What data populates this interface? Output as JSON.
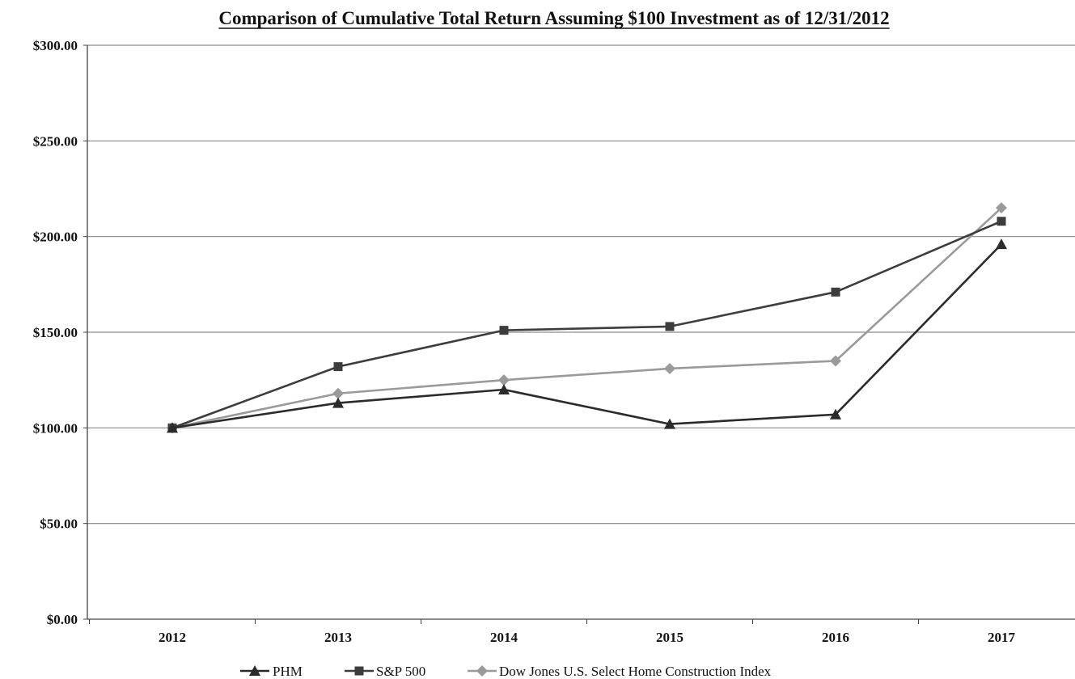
{
  "chart_data": {
    "type": "line",
    "title": "Comparison of Cumulative Total Return Assuming $100 Investment as of 12/31/2012",
    "xlabel": "",
    "ylabel": "",
    "categories": [
      "2012",
      "2013",
      "2014",
      "2015",
      "2016",
      "2017"
    ],
    "ylim": [
      0,
      300
    ],
    "y_ticks": [
      0,
      50,
      100,
      150,
      200,
      250,
      300
    ],
    "y_tick_labels": [
      "$0.00",
      "$50.00",
      "$100.00",
      "$150.00",
      "$200.00",
      "$250.00",
      "$300.00"
    ],
    "grid": true,
    "legend_position": "bottom",
    "series": [
      {
        "name": "PHM",
        "marker": "triangle",
        "color": "#2b2b2b",
        "values": [
          100,
          113,
          120,
          102,
          107,
          196
        ]
      },
      {
        "name": "S&P 500",
        "marker": "square",
        "color": "#3d3d3d",
        "values": [
          100,
          132,
          151,
          153,
          171,
          208
        ]
      },
      {
        "name": "Dow Jones U.S. Select Home Construction Index",
        "marker": "diamond",
        "color": "#9a9a9a",
        "values": [
          100,
          118,
          125,
          131,
          135,
          215
        ]
      }
    ]
  }
}
